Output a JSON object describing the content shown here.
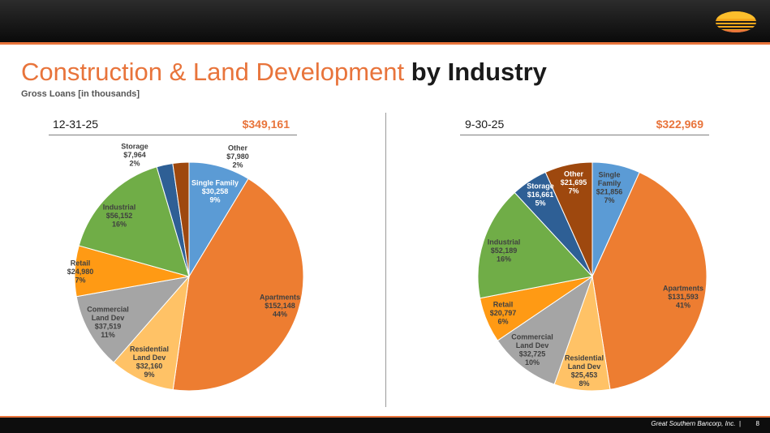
{
  "header": {
    "title_main": "Construction & Land Development",
    "title_bold": "by Industry",
    "subtitle": "Gross Loans [in thousands]"
  },
  "colors": {
    "accent": "#e8743b",
    "slices": [
      "#5b9bd5",
      "#ed7d31",
      "#ffc266",
      "#a5a5a5",
      "#ff9a14",
      "#70ad47",
      "#2e5f95",
      "#9e480e"
    ]
  },
  "chart_data": [
    {
      "type": "pie",
      "title": "12-31-25",
      "total": "$349,161",
      "slices": [
        {
          "lines": [
            "Single Family",
            "$30,258",
            "9%"
          ],
          "value": 30258
        },
        {
          "lines": [
            "Apartments",
            "$152,148",
            "44%"
          ],
          "value": 152148
        },
        {
          "lines": [
            "Residential",
            "Land Dev",
            "$32,160",
            "9%"
          ],
          "value": 32160
        },
        {
          "lines": [
            "Commercial",
            "Land Dev",
            "$37,519",
            "11%"
          ],
          "value": 37519
        },
        {
          "lines": [
            "Retail",
            "$24,980",
            "7%"
          ],
          "value": 24980
        },
        {
          "lines": [
            "Industrial",
            "$56,152",
            "16%"
          ],
          "value": 56152
        },
        {
          "lines": [
            "Storage",
            "$7,964",
            "2%"
          ],
          "value": 7964
        },
        {
          "lines": [
            "Other",
            "$7,980",
            "2%"
          ],
          "value": 7980
        }
      ]
    },
    {
      "type": "pie",
      "title": "9-30-25",
      "total": "$322,969",
      "slices": [
        {
          "lines": [
            "Single",
            "Family",
            "$21,856",
            "7%"
          ],
          "value": 21856
        },
        {
          "lines": [
            "Apartments",
            "$131,593",
            "41%"
          ],
          "value": 131593
        },
        {
          "lines": [
            "Residential",
            "Land Dev",
            "$25,453",
            "8%"
          ],
          "value": 25453
        },
        {
          "lines": [
            "Commercial",
            "Land Dev",
            "$32,725",
            "10%"
          ],
          "value": 32725
        },
        {
          "lines": [
            "Retail",
            "$20,797",
            "6%"
          ],
          "value": 20797
        },
        {
          "lines": [
            "Industrial",
            "$52,189",
            "16%"
          ],
          "value": 52189
        },
        {
          "lines": [
            "Storage",
            "$16,661",
            "5%"
          ],
          "value": 16661
        },
        {
          "lines": [
            "Other",
            "$21,695",
            "7%"
          ],
          "value": 21695
        }
      ]
    }
  ],
  "footer": {
    "company": "Great Southern Bancorp, Inc.",
    "page": "8"
  }
}
